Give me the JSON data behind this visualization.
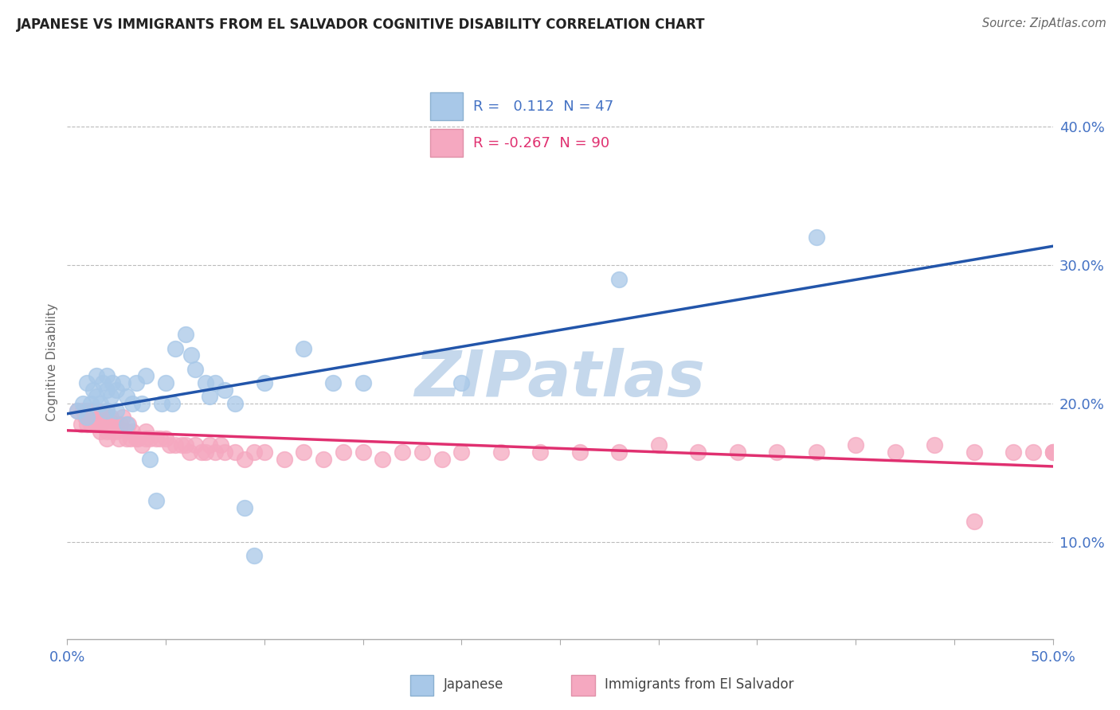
{
  "title": "JAPANESE VS IMMIGRANTS FROM EL SALVADOR COGNITIVE DISABILITY CORRELATION CHART",
  "source": "Source: ZipAtlas.com",
  "ylabel": "Cognitive Disability",
  "xlim": [
    0.0,
    0.5
  ],
  "ylim": [
    0.03,
    0.43
  ],
  "yticks_right": [
    0.1,
    0.2,
    0.3,
    0.4
  ],
  "yticklabels_right": [
    "10.0%",
    "20.0%",
    "30.0%",
    "40.0%"
  ],
  "japanese_fill": "#a8c8e8",
  "salvador_fill": "#f5a8c0",
  "japanese_line": "#2255aa",
  "salvador_line": "#e03070",
  "tick_color": "#4472c4",
  "title_color": "#222222",
  "bg_color": "#ffffff",
  "grid_color": "#bbbbbb",
  "watermark": "ZIPatlas",
  "watermark_color": "#c5d8ec",
  "legend_text_blue": "#4472c4",
  "legend_text_pink": "#e03070",
  "japanese_x": [
    0.005,
    0.008,
    0.01,
    0.01,
    0.012,
    0.013,
    0.015,
    0.015,
    0.017,
    0.018,
    0.02,
    0.02,
    0.02,
    0.022,
    0.023,
    0.025,
    0.025,
    0.028,
    0.03,
    0.03,
    0.033,
    0.035,
    0.038,
    0.04,
    0.042,
    0.045,
    0.048,
    0.05,
    0.053,
    0.055,
    0.06,
    0.063,
    0.065,
    0.07,
    0.072,
    0.075,
    0.08,
    0.085,
    0.09,
    0.095,
    0.1,
    0.12,
    0.135,
    0.15,
    0.2,
    0.28,
    0.38
  ],
  "japanese_y": [
    0.195,
    0.2,
    0.19,
    0.215,
    0.2,
    0.21,
    0.22,
    0.205,
    0.2,
    0.215,
    0.195,
    0.21,
    0.22,
    0.205,
    0.215,
    0.195,
    0.21,
    0.215,
    0.185,
    0.205,
    0.2,
    0.215,
    0.2,
    0.22,
    0.16,
    0.13,
    0.2,
    0.215,
    0.2,
    0.24,
    0.25,
    0.235,
    0.225,
    0.215,
    0.205,
    0.215,
    0.21,
    0.2,
    0.125,
    0.09,
    0.215,
    0.24,
    0.215,
    0.215,
    0.215,
    0.29,
    0.32
  ],
  "salvador_x": [
    0.005,
    0.007,
    0.008,
    0.009,
    0.01,
    0.01,
    0.01,
    0.011,
    0.012,
    0.012,
    0.013,
    0.014,
    0.015,
    0.015,
    0.015,
    0.016,
    0.017,
    0.018,
    0.019,
    0.02,
    0.02,
    0.02,
    0.02,
    0.021,
    0.022,
    0.023,
    0.025,
    0.025,
    0.026,
    0.027,
    0.028,
    0.03,
    0.03,
    0.031,
    0.032,
    0.033,
    0.035,
    0.036,
    0.038,
    0.04,
    0.04,
    0.042,
    0.045,
    0.047,
    0.05,
    0.052,
    0.055,
    0.058,
    0.06,
    0.062,
    0.065,
    0.068,
    0.07,
    0.072,
    0.075,
    0.078,
    0.08,
    0.085,
    0.09,
    0.095,
    0.1,
    0.11,
    0.12,
    0.13,
    0.14,
    0.15,
    0.16,
    0.17,
    0.18,
    0.19,
    0.2,
    0.22,
    0.24,
    0.26,
    0.28,
    0.3,
    0.32,
    0.34,
    0.36,
    0.38,
    0.4,
    0.42,
    0.44,
    0.46,
    0.46,
    0.48,
    0.49,
    0.5,
    0.5,
    0.5
  ],
  "salvador_y": [
    0.195,
    0.185,
    0.195,
    0.19,
    0.195,
    0.19,
    0.185,
    0.195,
    0.19,
    0.185,
    0.19,
    0.195,
    0.185,
    0.185,
    0.195,
    0.19,
    0.18,
    0.185,
    0.19,
    0.175,
    0.18,
    0.19,
    0.195,
    0.185,
    0.19,
    0.18,
    0.18,
    0.185,
    0.175,
    0.185,
    0.19,
    0.175,
    0.18,
    0.185,
    0.175,
    0.18,
    0.175,
    0.175,
    0.17,
    0.175,
    0.18,
    0.175,
    0.175,
    0.175,
    0.175,
    0.17,
    0.17,
    0.17,
    0.17,
    0.165,
    0.17,
    0.165,
    0.165,
    0.17,
    0.165,
    0.17,
    0.165,
    0.165,
    0.16,
    0.165,
    0.165,
    0.16,
    0.165,
    0.16,
    0.165,
    0.165,
    0.16,
    0.165,
    0.165,
    0.16,
    0.165,
    0.165,
    0.165,
    0.165,
    0.165,
    0.17,
    0.165,
    0.165,
    0.165,
    0.165,
    0.17,
    0.165,
    0.17,
    0.165,
    0.115,
    0.165,
    0.165,
    0.165,
    0.165,
    0.165
  ]
}
